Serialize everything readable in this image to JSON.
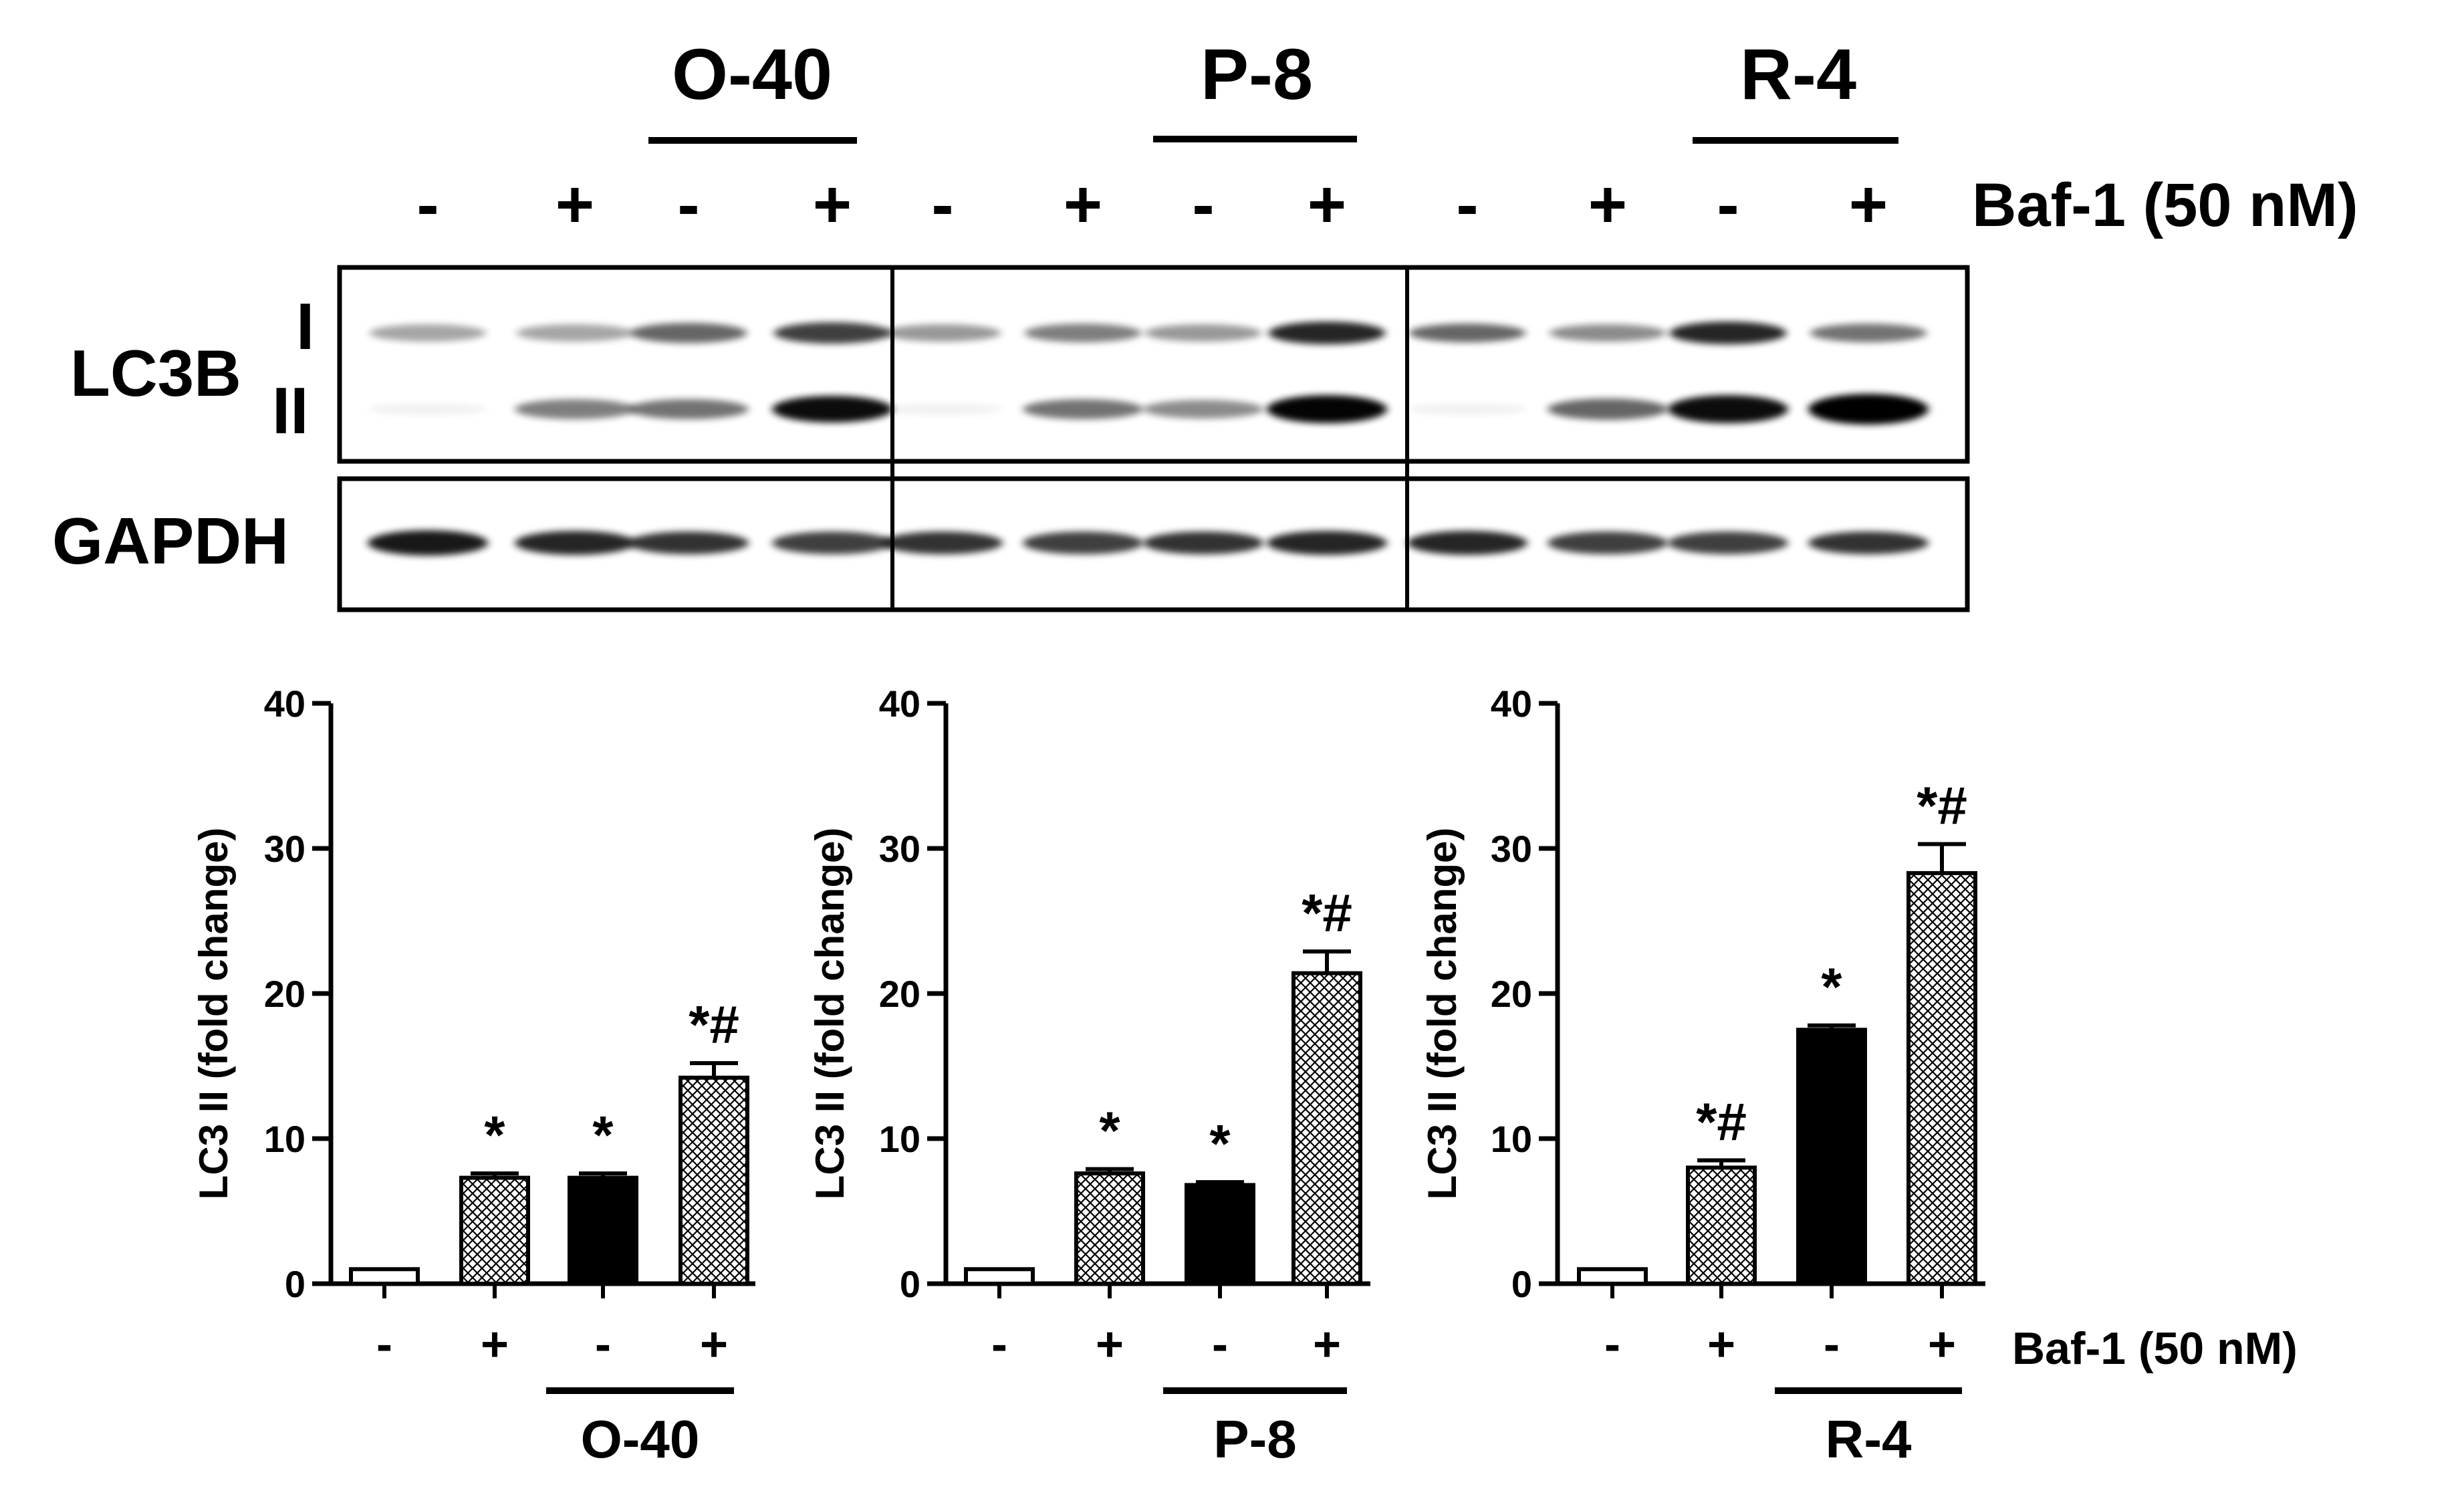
{
  "blot": {
    "group_names": [
      "O-40",
      "P-8",
      "R-4"
    ],
    "lane_signs": [
      "-",
      "+",
      "-",
      "+",
      "-",
      "+",
      "-",
      "+",
      "-",
      "+",
      "-",
      "+"
    ],
    "treatment_label": "Baf-1 (50 nM)",
    "row1_label": "LC3B",
    "band_I_label": "I",
    "band_II_label": "II",
    "row2_label": "GAPDH"
  },
  "chart_data": [
    {
      "type": "bar",
      "group_label": "O-40",
      "categories": [
        "-",
        "+",
        "-",
        "+"
      ],
      "values": [
        1.0,
        7.3,
        7.3,
        14.2
      ],
      "errors": [
        0.0,
        0.3,
        0.3,
        1.0
      ],
      "annotations": [
        "",
        "*",
        "*",
        "*#"
      ],
      "ylabel": "LC3 II (fold change)",
      "ylim": [
        0,
        40
      ],
      "yticks": [
        "0",
        "10",
        "20",
        "30",
        "40"
      ],
      "fills": [
        "white",
        "hatched",
        "black",
        "hatched"
      ]
    },
    {
      "type": "bar",
      "group_label": "P-8",
      "categories": [
        "-",
        "+",
        "-",
        "+"
      ],
      "values": [
        1.0,
        7.6,
        6.8,
        21.4
      ],
      "errors": [
        0.0,
        0.3,
        0.2,
        1.5
      ],
      "annotations": [
        "",
        "*",
        "*",
        "*#"
      ],
      "ylabel": "LC3 II (fold change)",
      "ylim": [
        0,
        40
      ],
      "yticks": [
        "0",
        "10",
        "20",
        "30",
        "40"
      ],
      "fills": [
        "white",
        "hatched",
        "black",
        "hatched"
      ]
    },
    {
      "type": "bar",
      "group_label": "R-4",
      "categories": [
        "-",
        "+",
        "-",
        "+"
      ],
      "values": [
        1.0,
        8.0,
        17.5,
        28.3
      ],
      "errors": [
        0.0,
        0.5,
        0.3,
        2.0
      ],
      "annotations": [
        "",
        "*#",
        "*",
        "*#"
      ],
      "ylabel": "LC3 II (fold change)",
      "ylim": [
        0,
        40
      ],
      "yticks": [
        "0",
        "10",
        "20",
        "30",
        "40"
      ],
      "fills": [
        "white",
        "hatched",
        "black",
        "hatched"
      ],
      "treatment_label": "Baf-1 (50 nM)"
    }
  ]
}
